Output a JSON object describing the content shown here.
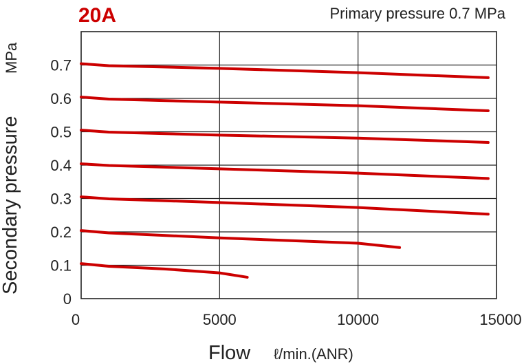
{
  "chart_data": {
    "type": "line",
    "title": "20A",
    "subtitle": "Primary pressure 0.7 MPa",
    "xlabel": "Flow",
    "xlabel_unit": "ℓ/min.(ANR)",
    "ylabel": "Secondary pressure",
    "ylabel_unit": "MPa",
    "xlim": [
      0,
      15000
    ],
    "ylim": [
      0,
      0.8
    ],
    "x_ticks": [
      "0",
      "5000",
      "10000",
      "15000"
    ],
    "x_tick_values": [
      0,
      5000,
      10000,
      15000
    ],
    "y_ticks": [
      "0",
      "0.1",
      "0.2",
      "0.3",
      "0.4",
      "0.5",
      "0.6",
      "0.7"
    ],
    "y_tick_values": [
      0,
      0.1,
      0.2,
      0.3,
      0.4,
      0.5,
      0.6,
      0.7
    ],
    "grid": true,
    "legend": "none",
    "series_color": "#cc0000",
    "title_color": "#cc0000",
    "series": [
      {
        "points": [
          [
            0,
            0.704
          ],
          [
            1000,
            0.698
          ],
          [
            5000,
            0.69
          ],
          [
            10000,
            0.677
          ],
          [
            14700,
            0.662
          ]
        ]
      },
      {
        "points": [
          [
            0,
            0.604
          ],
          [
            1000,
            0.598
          ],
          [
            5000,
            0.589
          ],
          [
            10000,
            0.578
          ],
          [
            14700,
            0.563
          ]
        ]
      },
      {
        "points": [
          [
            0,
            0.505
          ],
          [
            1000,
            0.499
          ],
          [
            5000,
            0.49
          ],
          [
            10000,
            0.481
          ],
          [
            14700,
            0.468
          ]
        ]
      },
      {
        "points": [
          [
            0,
            0.404
          ],
          [
            1000,
            0.399
          ],
          [
            5000,
            0.389
          ],
          [
            10000,
            0.376
          ],
          [
            14700,
            0.36
          ]
        ]
      },
      {
        "points": [
          [
            0,
            0.305
          ],
          [
            1000,
            0.299
          ],
          [
            5000,
            0.288
          ],
          [
            10000,
            0.273
          ],
          [
            14700,
            0.253
          ]
        ]
      },
      {
        "points": [
          [
            0,
            0.204
          ],
          [
            1000,
            0.197
          ],
          [
            5000,
            0.182
          ],
          [
            10000,
            0.166
          ],
          [
            11500,
            0.153
          ]
        ]
      },
      {
        "points": [
          [
            0,
            0.105
          ],
          [
            1000,
            0.097
          ],
          [
            3000,
            0.089
          ],
          [
            5000,
            0.077
          ],
          [
            6000,
            0.064
          ]
        ]
      }
    ]
  }
}
